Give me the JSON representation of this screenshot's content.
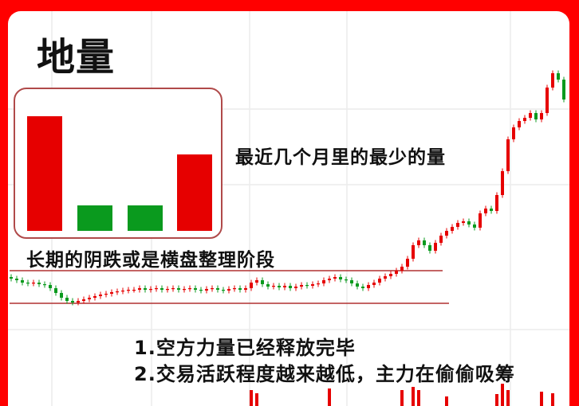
{
  "title": "地量",
  "colors": {
    "up": "#e60000",
    "down": "#0a9a1e",
    "frame": "#ff0000",
    "support_line": "#b03030",
    "grid": "#ececec"
  },
  "illustration": {
    "bars": [
      {
        "color": "red",
        "value": 100
      },
      {
        "color": "green",
        "value": 22
      },
      {
        "color": "green",
        "value": 22
      },
      {
        "color": "red",
        "value": 67
      }
    ]
  },
  "annotations": {
    "min_volume": "最近几个月里的最少的量",
    "phase": "长期的阴跌或是横盘整理阶段",
    "point_1": "1.空方力量已经释放完毕",
    "point_2": "2.交易活跃程度越来越低，主力在偷偷吸筹"
  },
  "chart_data": {
    "type": "candlestick",
    "title": "",
    "xlabel": "",
    "ylabel": "",
    "ylim": [
      10,
      42
    ],
    "grid": true,
    "close": [
      15.0,
      14.8,
      14.5,
      14.4,
      14.5,
      14.3,
      14.2,
      13.8,
      13.2,
      12.6,
      12.2,
      12.0,
      12.2,
      12.4,
      12.6,
      12.8,
      13.0,
      13.1,
      13.3,
      13.4,
      13.5,
      13.6,
      13.6,
      13.8,
      13.6,
      13.7,
      13.8,
      13.6,
      13.7,
      13.8,
      13.6,
      13.7,
      13.8,
      13.6,
      13.5,
      13.7,
      13.8,
      13.6,
      13.5,
      13.7,
      13.8,
      13.6,
      13.8,
      14.5,
      14.8,
      14.3,
      14.0,
      14.1,
      13.9,
      14.1,
      13.8,
      14.0,
      14.2,
      14.1,
      14.3,
      14.4,
      14.8,
      15.0,
      15.2,
      14.9,
      14.8,
      14.4,
      14.0,
      13.8,
      14.2,
      14.5,
      15.0,
      15.3,
      15.6,
      16.0,
      16.5,
      17.5,
      19.2,
      19.8,
      19.2,
      18.5,
      19.5,
      20.4,
      21.0,
      21.5,
      22.0,
      22.2,
      21.8,
      21.4,
      23.2,
      23.8,
      23.5,
      25.5,
      28.5,
      32.5,
      34.0,
      34.8,
      35.2,
      35.8,
      35.0,
      35.8,
      39.0,
      40.8,
      40.0,
      37.5
    ],
    "support_levels": [
      16.0,
      11.9
    ],
    "volume": [
      10,
      10,
      10,
      10,
      10,
      10,
      10,
      10,
      10,
      10,
      10,
      10,
      10,
      10,
      10,
      10,
      10,
      10,
      10,
      10,
      10,
      10,
      10,
      10,
      10,
      10,
      10,
      10,
      10,
      10,
      10,
      10,
      10,
      10,
      10,
      10,
      10,
      10,
      10,
      10,
      10,
      10,
      10,
      30,
      26,
      10,
      10,
      10,
      10,
      10,
      10,
      10,
      10,
      10,
      10,
      10,
      10,
      32,
      10,
      10,
      10,
      10,
      10,
      10,
      10,
      10,
      10,
      10,
      10,
      10,
      30,
      10,
      34,
      30,
      10,
      10,
      10,
      10,
      22,
      10,
      10,
      10,
      10,
      10,
      10,
      10,
      10,
      25,
      38,
      30,
      10,
      10,
      10,
      10,
      10,
      28,
      10,
      26,
      10,
      10
    ]
  }
}
